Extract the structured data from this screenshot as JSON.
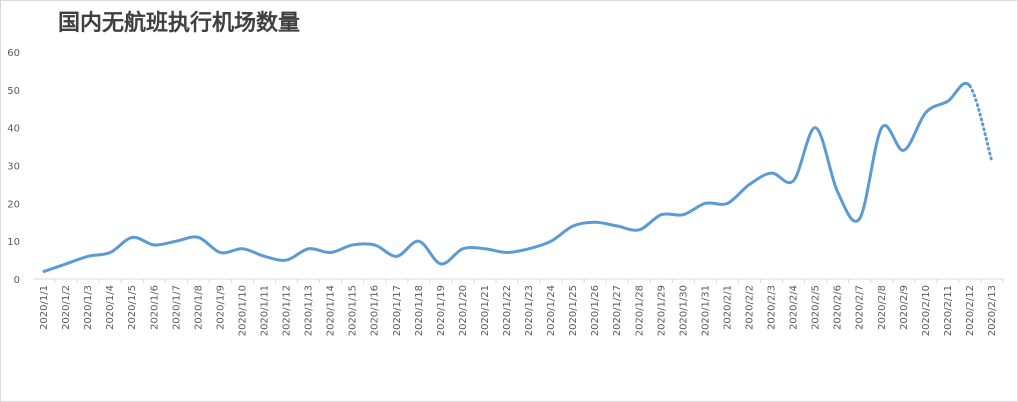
{
  "chart_data": {
    "type": "line",
    "title": "国内无航班执行机场数量",
    "categories": [
      "2020/1/1",
      "2020/1/2",
      "2020/1/3",
      "2020/1/4",
      "2020/1/5",
      "2020/1/6",
      "2020/1/7",
      "2020/1/8",
      "2020/1/9",
      "2020/1/10",
      "2020/1/11",
      "2020/1/12",
      "2020/1/13",
      "2020/1/14",
      "2020/1/15",
      "2020/1/16",
      "2020/1/17",
      "2020/1/18",
      "2020/1/19",
      "2020/1/20",
      "2020/1/21",
      "2020/1/22",
      "2020/1/23",
      "2020/1/24",
      "2020/1/25",
      "2020/1/26",
      "2020/1/27",
      "2020/1/28",
      "2020/1/29",
      "2020/1/30",
      "2020/1/31",
      "2020/2/1",
      "2020/2/2",
      "2020/2/3",
      "2020/2/4",
      "2020/2/5",
      "2020/2/6",
      "2020/2/7",
      "2020/2/8",
      "2020/2/9",
      "2020/2/10",
      "2020/2/11",
      "2020/2/12",
      "2020/2/13"
    ],
    "values": [
      2,
      4,
      6,
      7,
      11,
      9,
      10,
      11,
      7,
      8,
      6,
      5,
      8,
      7,
      9,
      9,
      6,
      10,
      4,
      8,
      8,
      7,
      8,
      10,
      14,
      15,
      14,
      13,
      17,
      17,
      20,
      20,
      25,
      28,
      26,
      40,
      23,
      16,
      40,
      34,
      44,
      47,
      51,
      31
    ],
    "color": "#5b9bd5",
    "last_segment_dotted": true,
    "ylim": [
      0,
      60
    ],
    "yticks": [
      0,
      10,
      20,
      30,
      40,
      50,
      60
    ],
    "grid": false
  }
}
